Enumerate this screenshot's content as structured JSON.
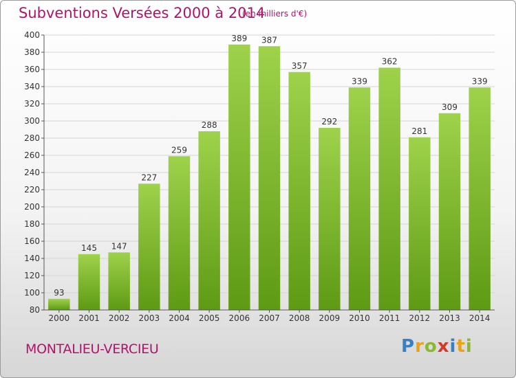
{
  "header": {
    "title": "Subventions Versées 2000 à 2014",
    "subtitle": "(en milliers d'€)"
  },
  "footer": {
    "town": "MONTALIEU-VERCIEU",
    "logo_letters": [
      "P",
      "r",
      "o",
      "x",
      "i",
      "t",
      "i"
    ],
    "logo_colors": [
      "#3a7fc1",
      "#e8a21b",
      "#8ab833",
      "#d33b2b",
      "#3a7fc1",
      "#e8a21b",
      "#8ab833"
    ]
  },
  "colors": {
    "bar_top": "#9ed24b",
    "bar_bottom": "#5e9a14",
    "grid": "#d4d4d4",
    "axis": "#555555",
    "text": "#333333",
    "accent": "#b0136a"
  },
  "chart_data": {
    "type": "bar",
    "categories": [
      "2000",
      "2001",
      "2002",
      "2003",
      "2004",
      "2005",
      "2006",
      "2007",
      "2008",
      "2009",
      "2010",
      "2011",
      "2012",
      "2013",
      "2014"
    ],
    "values": [
      93,
      145,
      147,
      227,
      259,
      288,
      389,
      387,
      357,
      292,
      339,
      362,
      281,
      309,
      339
    ],
    "title": "Subventions Versées 2000 à 2014",
    "subtitle": "(en milliers d'€)",
    "ylim": [
      80,
      400
    ],
    "ytick_step": 20,
    "grid": true
  }
}
